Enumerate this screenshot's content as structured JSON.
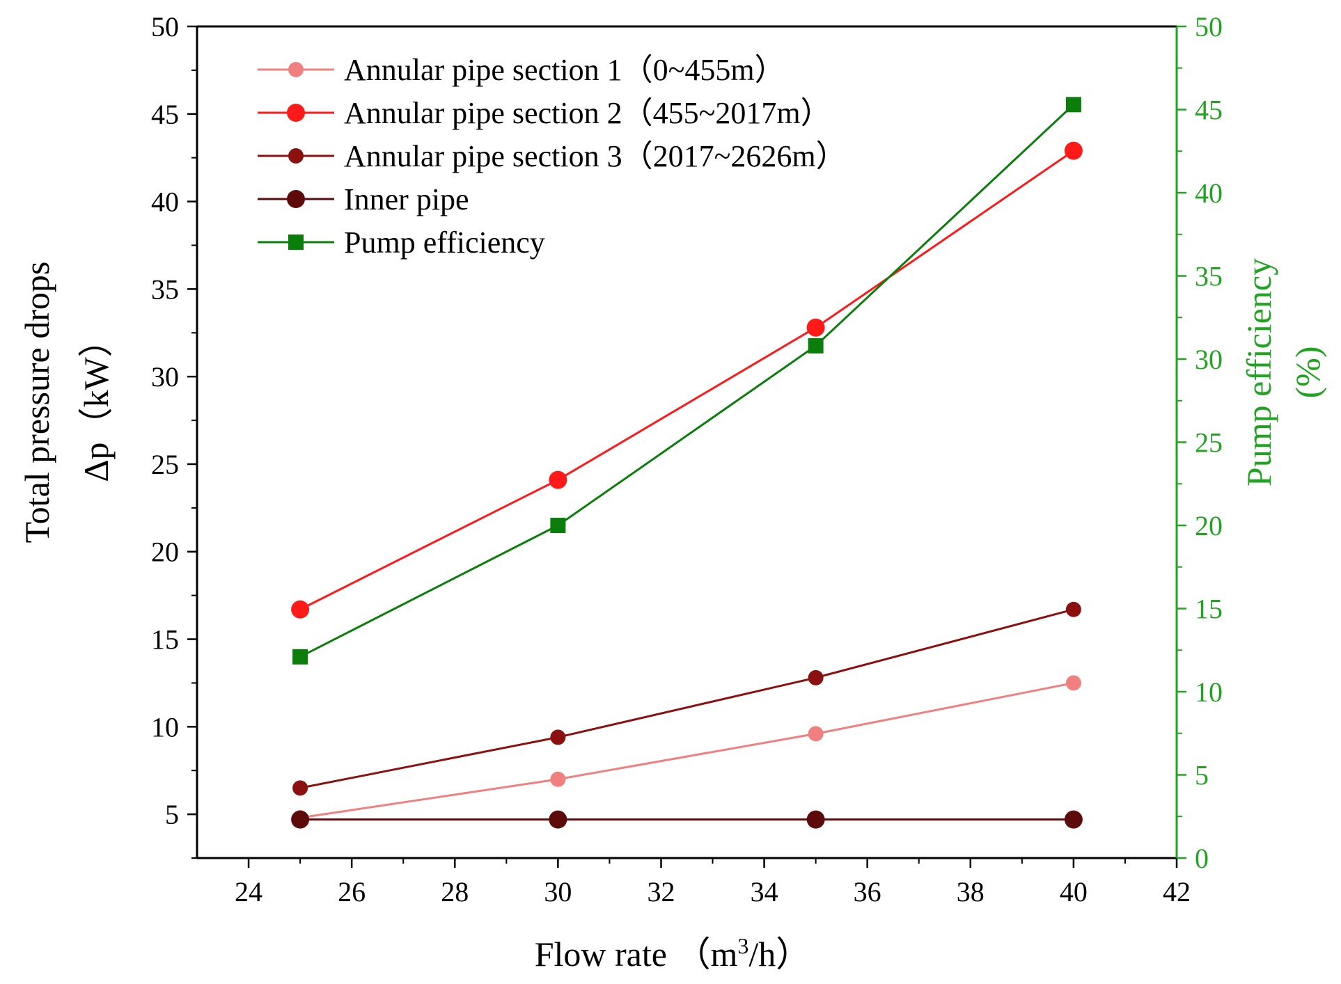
{
  "chart_data": {
    "type": "line",
    "title": "",
    "xlabel": "Flow rate （m³/h）",
    "xlabel_main": "Flow rate （m",
    "xlabel_sup": "3",
    "xlabel_tail": "/h）",
    "ylabel_left_line1": "Total pressure drops",
    "ylabel_left_line2": "Δp（kW）",
    "ylabel_right_line1": "Pump efficiency",
    "ylabel_right_line2": "(%)",
    "x_range": [
      23,
      42
    ],
    "x_ticks": [
      24,
      26,
      28,
      30,
      32,
      34,
      36,
      38,
      40,
      42
    ],
    "y_left_range": [
      2.5,
      50
    ],
    "y_left_ticks": [
      5,
      10,
      15,
      20,
      25,
      30,
      35,
      40,
      45,
      50
    ],
    "y_right_range": [
      0,
      50
    ],
    "y_right_ticks": [
      0,
      5,
      10,
      15,
      20,
      25,
      30,
      35,
      40,
      45,
      50
    ],
    "legend_position": "top-left",
    "x": [
      25,
      30,
      35,
      40
    ],
    "series": [
      {
        "name": "Annular pipe section 1（0~455m）",
        "axis": "left",
        "marker": "circle",
        "color": "#f08080",
        "values": [
          4.8,
          7.0,
          9.6,
          12.5
        ]
      },
      {
        "name": "Annular pipe section 2（455~2017m）",
        "axis": "left",
        "marker": "circle-large",
        "color": "#ff1a1a",
        "values": [
          16.7,
          24.1,
          32.8,
          42.9
        ]
      },
      {
        "name": "Annular pipe section 3（2017~2626m）",
        "axis": "left",
        "marker": "circle",
        "color": "#8b1010",
        "values": [
          6.5,
          9.4,
          12.8,
          16.7
        ]
      },
      {
        "name": "Inner pipe",
        "axis": "left",
        "marker": "circle-large",
        "color": "#5c0a0a",
        "values": [
          4.7,
          4.7,
          4.7,
          4.7
        ]
      },
      {
        "name": "Pump efficiency",
        "axis": "right",
        "marker": "square",
        "color": "#0a7d0a",
        "values": [
          12.1,
          20.0,
          30.8,
          45.3
        ]
      }
    ],
    "colors": {
      "axis": "#000000",
      "right_axis": "#21a321"
    }
  }
}
